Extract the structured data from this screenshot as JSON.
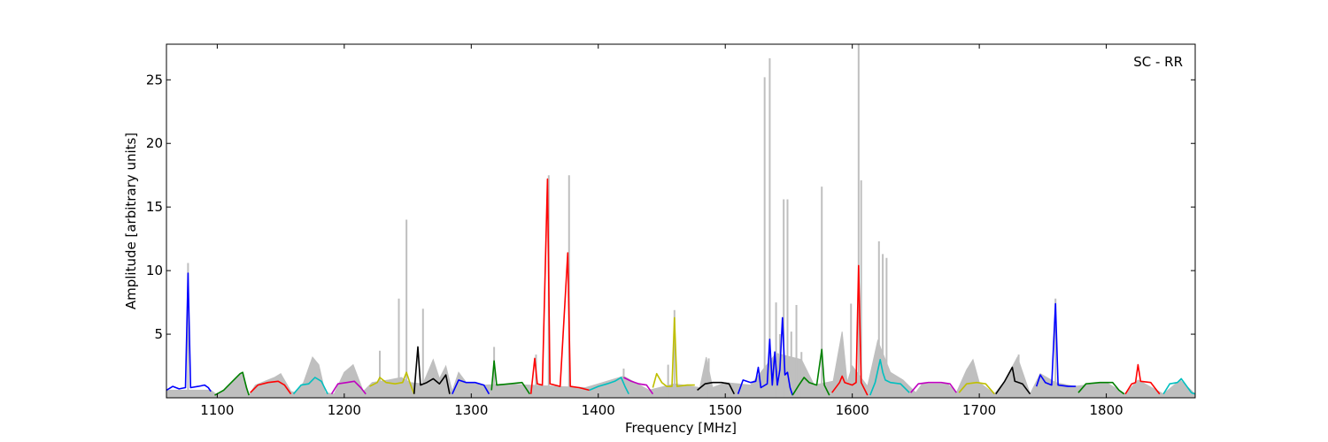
{
  "chart_data": {
    "type": "line",
    "title": "",
    "annotation": "SC - RR",
    "xlabel": "Frequency [MHz]",
    "ylabel": "Amplitude [arbitrary units]",
    "xlim": [
      1060,
      1870
    ],
    "ylim": [
      0,
      27.8
    ],
    "xticks": [
      1100,
      1200,
      1300,
      1400,
      1500,
      1600,
      1700,
      1800
    ],
    "yticks": [
      5,
      10,
      15,
      20,
      25
    ],
    "grid": false,
    "legend": "none",
    "raw_spectrum": {
      "color": "#bfbfbf",
      "baseline": [
        [
          1060,
          0.6
        ],
        [
          1095,
          0.6
        ],
        [
          1100,
          0.2
        ],
        [
          1110,
          1.0
        ],
        [
          1120,
          2.0
        ],
        [
          1125,
          0.2
        ],
        [
          1130,
          1.0
        ],
        [
          1145,
          1.6
        ],
        [
          1150,
          1.9
        ],
        [
          1158,
          0.5
        ],
        [
          1162,
          0.4
        ],
        [
          1168,
          1.2
        ],
        [
          1175,
          3.2
        ],
        [
          1180,
          2.6
        ],
        [
          1185,
          0.4
        ],
        [
          1192,
          0.3
        ],
        [
          1200,
          2.0
        ],
        [
          1207,
          2.6
        ],
        [
          1215,
          0.5
        ],
        [
          1222,
          1.2
        ],
        [
          1235,
          1.4
        ],
        [
          1245,
          1.6
        ],
        [
          1252,
          1.2
        ],
        [
          1262,
          1.1
        ],
        [
          1270,
          3.0
        ],
        [
          1275,
          1.5
        ],
        [
          1280,
          2.5
        ],
        [
          1285,
          0.5
        ],
        [
          1290,
          2.0
        ],
        [
          1296,
          1.2
        ],
        [
          1310,
          1.0
        ],
        [
          1330,
          1.1
        ],
        [
          1345,
          1.0
        ],
        [
          1390,
          0.8
        ],
        [
          1400,
          1.1
        ],
        [
          1420,
          1.7
        ],
        [
          1440,
          0.6
        ],
        [
          1460,
          1.1
        ],
        [
          1480,
          0.8
        ],
        [
          1485,
          3.2
        ],
        [
          1490,
          0.8
        ],
        [
          1500,
          1.2
        ],
        [
          1520,
          1.0
        ],
        [
          1540,
          3.5
        ],
        [
          1560,
          3.0
        ],
        [
          1570,
          1.0
        ],
        [
          1585,
          1.3
        ],
        [
          1592,
          5.2
        ],
        [
          1596,
          1.2
        ],
        [
          1600,
          2.5
        ],
        [
          1612,
          0.9
        ],
        [
          1620,
          4.5
        ],
        [
          1630,
          2.0
        ],
        [
          1640,
          1.4
        ],
        [
          1650,
          0.4
        ],
        [
          1655,
          1.1
        ],
        [
          1675,
          1.1
        ],
        [
          1682,
          0.4
        ],
        [
          1690,
          2.2
        ],
        [
          1695,
          3.0
        ],
        [
          1700,
          1.2
        ],
        [
          1712,
          0.3
        ],
        [
          1720,
          1.3
        ],
        [
          1730,
          3.2
        ],
        [
          1740,
          0.3
        ],
        [
          1748,
          1.9
        ],
        [
          1760,
          1.2
        ],
        [
          1775,
          0.9
        ],
        [
          1800,
          1.2
        ],
        [
          1815,
          0.3
        ],
        [
          1825,
          1.4
        ],
        [
          1845,
          0.3
        ],
        [
          1858,
          1.4
        ],
        [
          1870,
          0.3
        ]
      ],
      "spikes": [
        [
          1077,
          10.6
        ],
        [
          1228,
          3.7
        ],
        [
          1243,
          7.8
        ],
        [
          1249,
          14.0
        ],
        [
          1262,
          7.0
        ],
        [
          1318,
          4.0
        ],
        [
          1351,
          3.4
        ],
        [
          1361,
          17.5
        ],
        [
          1377,
          17.5
        ],
        [
          1420,
          2.3
        ],
        [
          1455,
          2.6
        ],
        [
          1460,
          6.9
        ],
        [
          1487,
          3.1
        ],
        [
          1531,
          25.2
        ],
        [
          1535,
          26.7
        ],
        [
          1540,
          7.5
        ],
        [
          1543,
          5.0
        ],
        [
          1546,
          15.6
        ],
        [
          1549,
          15.6
        ],
        [
          1552,
          5.2
        ],
        [
          1556,
          7.3
        ],
        [
          1560,
          3.6
        ],
        [
          1576,
          16.6
        ],
        [
          1599,
          7.4
        ],
        [
          1605,
          27.8
        ],
        [
          1607,
          17.1
        ],
        [
          1621,
          12.3
        ],
        [
          1624,
          11.3
        ],
        [
          1627,
          11.0
        ],
        [
          1731,
          3.4
        ],
        [
          1760,
          7.8
        ]
      ]
    },
    "series": [
      {
        "color": "#0000ff",
        "points": [
          [
            1060,
            0.6
          ],
          [
            1065,
            0.9
          ],
          [
            1070,
            0.7
          ],
          [
            1075,
            0.8
          ],
          [
            1077,
            9.8
          ],
          [
            1079,
            0.8
          ],
          [
            1085,
            0.9
          ],
          [
            1090,
            1.0
          ],
          [
            1093,
            0.8
          ],
          [
            1095,
            0.5
          ]
        ]
      },
      {
        "color": "#008000",
        "points": [
          [
            1098,
            0.2
          ],
          [
            1105,
            0.6
          ],
          [
            1112,
            1.3
          ],
          [
            1118,
            1.9
          ],
          [
            1120,
            2.0
          ],
          [
            1123,
            0.8
          ],
          [
            1125,
            0.2
          ]
        ]
      },
      {
        "color": "#ff0000",
        "points": [
          [
            1126,
            0.4
          ],
          [
            1132,
            1.0
          ],
          [
            1140,
            1.2
          ],
          [
            1148,
            1.3
          ],
          [
            1153,
            1.0
          ],
          [
            1158,
            0.3
          ]
        ]
      },
      {
        "color": "#00bfbf",
        "points": [
          [
            1160,
            0.3
          ],
          [
            1166,
            1.0
          ],
          [
            1172,
            1.1
          ],
          [
            1177,
            1.6
          ],
          [
            1182,
            1.3
          ],
          [
            1187,
            0.3
          ]
        ]
      },
      {
        "color": "#bf00bf",
        "points": [
          [
            1190,
            0.3
          ],
          [
            1195,
            1.1
          ],
          [
            1202,
            1.2
          ],
          [
            1208,
            1.3
          ],
          [
            1213,
            0.8
          ],
          [
            1217,
            0.3
          ]
        ]
      },
      {
        "color": "#bfbf00",
        "points": [
          [
            1220,
            0.9
          ],
          [
            1226,
            1.2
          ],
          [
            1228,
            1.6
          ],
          [
            1233,
            1.2
          ],
          [
            1240,
            1.1
          ],
          [
            1246,
            1.2
          ],
          [
            1249,
            2.0
          ],
          [
            1252,
            1.1
          ],
          [
            1255,
            0.3
          ]
        ]
      },
      {
        "color": "#000000",
        "points": [
          [
            1255,
            0.3
          ],
          [
            1258,
            4.0
          ],
          [
            1260,
            1.0
          ],
          [
            1265,
            1.2
          ],
          [
            1270,
            1.5
          ],
          [
            1275,
            1.1
          ],
          [
            1280,
            1.8
          ],
          [
            1283,
            0.3
          ]
        ]
      },
      {
        "color": "#0000ff",
        "points": [
          [
            1285,
            0.3
          ],
          [
            1290,
            1.4
          ],
          [
            1296,
            1.2
          ],
          [
            1303,
            1.2
          ],
          [
            1310,
            1.0
          ],
          [
            1314,
            0.3
          ]
        ]
      },
      {
        "color": "#008000",
        "points": [
          [
            1316,
            0.6
          ],
          [
            1318,
            2.9
          ],
          [
            1320,
            1.0
          ],
          [
            1330,
            1.1
          ],
          [
            1340,
            1.2
          ],
          [
            1346,
            0.3
          ]
        ]
      },
      {
        "color": "#ff0000",
        "points": [
          [
            1347,
            0.3
          ],
          [
            1350,
            3.1
          ],
          [
            1352,
            1.1
          ],
          [
            1356,
            1.0
          ],
          [
            1360,
            17.2
          ],
          [
            1362,
            1.1
          ],
          [
            1370,
            0.9
          ],
          [
            1376,
            11.4
          ],
          [
            1378,
            0.9
          ],
          [
            1385,
            0.8
          ],
          [
            1393,
            0.6
          ]
        ]
      },
      {
        "color": "#00bfbf",
        "points": [
          [
            1393,
            0.6
          ],
          [
            1400,
            0.9
          ],
          [
            1407,
            1.1
          ],
          [
            1413,
            1.3
          ],
          [
            1418,
            1.6
          ],
          [
            1421,
            0.9
          ],
          [
            1424,
            0.3
          ]
        ]
      },
      {
        "color": "#bf00bf",
        "points": [
          [
            1420,
            1.6
          ],
          [
            1426,
            1.3
          ],
          [
            1432,
            1.1
          ],
          [
            1438,
            1.0
          ],
          [
            1443,
            0.3
          ]
        ]
      },
      {
        "color": "#bfbf00",
        "points": [
          [
            1443,
            0.8
          ],
          [
            1446,
            1.9
          ],
          [
            1450,
            1.2
          ],
          [
            1454,
            0.9
          ],
          [
            1458,
            0.9
          ],
          [
            1460,
            6.3
          ],
          [
            1462,
            0.9
          ],
          [
            1470,
            1.0
          ],
          [
            1476,
            1.0
          ]
        ]
      },
      {
        "color": "#000000",
        "points": [
          [
            1478,
            0.6
          ],
          [
            1484,
            1.1
          ],
          [
            1490,
            1.2
          ],
          [
            1497,
            1.2
          ],
          [
            1503,
            1.1
          ],
          [
            1507,
            0.3
          ]
        ]
      },
      {
        "color": "#0000ff",
        "points": [
          [
            1510,
            0.3
          ],
          [
            1514,
            1.4
          ],
          [
            1520,
            1.2
          ],
          [
            1524,
            1.3
          ],
          [
            1526,
            2.4
          ],
          [
            1528,
            0.8
          ],
          [
            1533,
            1.1
          ],
          [
            1535,
            4.6
          ],
          [
            1537,
            1.0
          ],
          [
            1539,
            3.6
          ],
          [
            1541,
            1.0
          ],
          [
            1543,
            2.2
          ],
          [
            1545,
            6.3
          ],
          [
            1547,
            1.8
          ],
          [
            1549,
            2.0
          ],
          [
            1551,
            0.8
          ],
          [
            1553,
            0.2
          ]
        ]
      },
      {
        "color": "#008000",
        "points": [
          [
            1553,
            0.2
          ],
          [
            1558,
            1.0
          ],
          [
            1562,
            1.6
          ],
          [
            1566,
            1.2
          ],
          [
            1572,
            1.0
          ],
          [
            1576,
            3.8
          ],
          [
            1578,
            1.0
          ],
          [
            1582,
            0.2
          ]
        ]
      },
      {
        "color": "#ff0000",
        "points": [
          [
            1584,
            0.4
          ],
          [
            1590,
            1.2
          ],
          [
            1592,
            1.7
          ],
          [
            1594,
            1.2
          ],
          [
            1600,
            1.0
          ],
          [
            1603,
            1.2
          ],
          [
            1605,
            10.4
          ],
          [
            1607,
            1.2
          ],
          [
            1612,
            0.2
          ]
        ]
      },
      {
        "color": "#00bfbf",
        "points": [
          [
            1614,
            0.2
          ],
          [
            1618,
            1.2
          ],
          [
            1622,
            3.0
          ],
          [
            1624,
            2.0
          ],
          [
            1626,
            1.4
          ],
          [
            1630,
            1.2
          ],
          [
            1638,
            1.1
          ],
          [
            1645,
            0.4
          ]
        ]
      },
      {
        "color": "#bf00bf",
        "points": [
          [
            1646,
            0.4
          ],
          [
            1652,
            1.1
          ],
          [
            1660,
            1.2
          ],
          [
            1670,
            1.2
          ],
          [
            1677,
            1.1
          ],
          [
            1682,
            0.4
          ]
        ]
      },
      {
        "color": "#bfbf00",
        "points": [
          [
            1684,
            0.4
          ],
          [
            1690,
            1.1
          ],
          [
            1698,
            1.2
          ],
          [
            1705,
            1.1
          ],
          [
            1712,
            0.3
          ]
        ]
      },
      {
        "color": "#000000",
        "points": [
          [
            1713,
            0.3
          ],
          [
            1720,
            1.3
          ],
          [
            1726,
            2.4
          ],
          [
            1728,
            1.3
          ],
          [
            1734,
            1.1
          ],
          [
            1740,
            0.3
          ]
        ]
      },
      {
        "color": "#0000ff",
        "points": [
          [
            1745,
            0.9
          ],
          [
            1748,
            1.8
          ],
          [
            1752,
            1.2
          ],
          [
            1757,
            1.0
          ],
          [
            1760,
            7.4
          ],
          [
            1762,
            1.0
          ],
          [
            1770,
            0.9
          ],
          [
            1776,
            0.9
          ]
        ]
      },
      {
        "color": "#008000",
        "points": [
          [
            1778,
            0.4
          ],
          [
            1784,
            1.1
          ],
          [
            1795,
            1.2
          ],
          [
            1805,
            1.2
          ],
          [
            1810,
            0.6
          ],
          [
            1814,
            0.3
          ]
        ]
      },
      {
        "color": "#ff0000",
        "points": [
          [
            1815,
            0.3
          ],
          [
            1820,
            1.1
          ],
          [
            1823,
            1.2
          ],
          [
            1825,
            2.6
          ],
          [
            1827,
            1.3
          ],
          [
            1835,
            1.2
          ],
          [
            1842,
            0.3
          ]
        ]
      },
      {
        "color": "#00bfbf",
        "points": [
          [
            1845,
            0.3
          ],
          [
            1850,
            1.1
          ],
          [
            1856,
            1.2
          ],
          [
            1859,
            1.5
          ],
          [
            1862,
            1.1
          ],
          [
            1867,
            0.4
          ],
          [
            1870,
            0.3
          ]
        ]
      }
    ]
  }
}
